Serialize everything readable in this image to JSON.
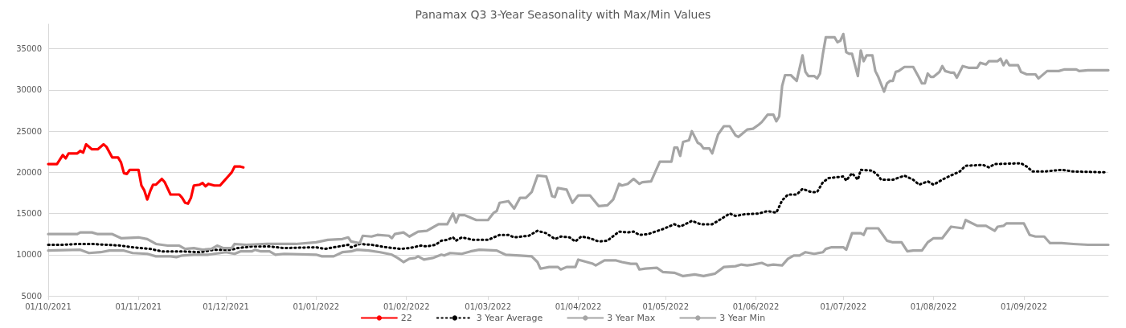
{
  "chart_data": {
    "type": "line",
    "title": "Panamax Q3 3-Year Seasonality with Max/Min Values",
    "xlim": [
      "2021-10-01",
      "2022-09-30"
    ],
    "xticks": [
      {
        "value": "2021-10-01",
        "label": "01/10/2021"
      },
      {
        "value": "2021-11-01",
        "label": "01/11/2021"
      },
      {
        "value": "2021-12-01",
        "label": "01/12/2021"
      },
      {
        "value": "2022-01-01",
        "label": "01/01/2022"
      },
      {
        "value": "2022-02-01",
        "label": "01/02/2022"
      },
      {
        "value": "2022-03-01",
        "label": "01/03/2022"
      },
      {
        "value": "2022-04-01",
        "label": "01/04/2022"
      },
      {
        "value": "2022-05-01",
        "label": "01/05/2022"
      },
      {
        "value": "2022-06-01",
        "label": "01/06/2022"
      },
      {
        "value": "2022-07-01",
        "label": "01/07/2022"
      },
      {
        "value": "2022-08-01",
        "label": "01/08/2022"
      },
      {
        "value": "2022-09-01",
        "label": "01/09/2022"
      }
    ],
    "ylim": [
      5000,
      38000
    ],
    "yticks": [
      5000,
      10000,
      15000,
      20000,
      25000,
      30000,
      35000
    ],
    "grid": "y",
    "legend": "bottom",
    "marker": "none",
    "series": [
      {
        "name": "22",
        "color": "#ff0000",
        "line_style": "solid",
        "x": [
          "2021-10-01",
          "2021-10-04",
          "2021-10-06",
          "2021-10-07",
          "2021-10-08",
          "2021-10-11",
          "2021-10-12",
          "2021-10-13",
          "2021-10-14",
          "2021-10-16",
          "2021-10-18",
          "2021-10-20",
          "2021-10-21",
          "2021-10-23",
          "2021-10-25",
          "2021-10-26",
          "2021-10-27",
          "2021-10-28",
          "2021-10-29",
          "2021-11-01",
          "2021-11-02",
          "2021-11-03",
          "2021-11-04",
          "2021-11-05",
          "2021-11-06",
          "2021-11-07",
          "2021-11-09",
          "2021-11-10",
          "2021-11-12",
          "2021-11-15",
          "2021-11-16",
          "2021-11-17",
          "2021-11-18",
          "2021-11-19",
          "2021-11-20",
          "2021-11-22",
          "2021-11-23",
          "2021-11-24",
          "2021-11-25",
          "2021-11-27",
          "2021-11-29",
          "2021-11-30",
          "2021-12-02",
          "2021-12-03",
          "2021-12-04",
          "2021-12-06",
          "2021-12-07"
        ],
        "values": [
          21000,
          21000,
          22100,
          21700,
          22300,
          22300,
          22600,
          22400,
          23400,
          22800,
          22800,
          23400,
          23100,
          21800,
          21800,
          21200,
          19900,
          19800,
          20300,
          20300,
          18400,
          17800,
          16700,
          17700,
          18500,
          18500,
          19200,
          18800,
          17300,
          17300,
          16900,
          16300,
          16200,
          16900,
          18400,
          18500,
          18700,
          18300,
          18600,
          18400,
          18400,
          18800,
          19600,
          20000,
          20700,
          20700,
          20600
        ]
      },
      {
        "name": "3 Year Average",
        "color": "#000000",
        "line_style": "dotted",
        "x": [
          "2021-10-01",
          "2021-10-06",
          "2021-10-11",
          "2021-10-16",
          "2021-10-21",
          "2021-10-26",
          "2021-10-30",
          "2021-11-05",
          "2021-11-09",
          "2021-11-16",
          "2021-11-22",
          "2021-11-27",
          "2021-12-03",
          "2021-12-05",
          "2021-12-10",
          "2021-12-16",
          "2021-12-21",
          "2022-01-01",
          "2022-01-04",
          "2022-01-12",
          "2022-01-13",
          "2022-01-16",
          "2022-01-20",
          "2022-01-25",
          "2022-01-30",
          "2022-02-02",
          "2022-02-06",
          "2022-02-08",
          "2022-02-11",
          "2022-02-13",
          "2022-02-15",
          "2022-02-17",
          "2022-02-18",
          "2022-02-20",
          "2022-02-24",
          "2022-03-01",
          "2022-03-05",
          "2022-03-08",
          "2022-03-10",
          "2022-03-15",
          "2022-03-18",
          "2022-03-21",
          "2022-03-24",
          "2022-03-26",
          "2022-03-29",
          "2022-03-31",
          "2022-04-02",
          "2022-04-05",
          "2022-04-08",
          "2022-04-11",
          "2022-04-15",
          "2022-04-18",
          "2022-04-20",
          "2022-04-22",
          "2022-04-25",
          "2022-04-30",
          "2022-05-04",
          "2022-05-06",
          "2022-05-10",
          "2022-05-13",
          "2022-05-17",
          "2022-05-19",
          "2022-05-23",
          "2022-05-25",
          "2022-05-28",
          "2022-06-02",
          "2022-06-05",
          "2022-06-08",
          "2022-06-10",
          "2022-06-12",
          "2022-06-15",
          "2022-06-17",
          "2022-06-20",
          "2022-06-22",
          "2022-06-24",
          "2022-06-26",
          "2022-07-01",
          "2022-07-02",
          "2022-07-04",
          "2022-07-06",
          "2022-07-07",
          "2022-07-11",
          "2022-07-13",
          "2022-07-14",
          "2022-07-18",
          "2022-07-22",
          "2022-07-25",
          "2022-07-27",
          "2022-07-30",
          "2022-08-01",
          "2022-08-05",
          "2022-08-10",
          "2022-08-12",
          "2022-08-18",
          "2022-08-20",
          "2022-08-22",
          "2022-08-31",
          "2022-09-02",
          "2022-09-04",
          "2022-09-08",
          "2022-09-14",
          "2022-09-18",
          "2022-09-29"
        ],
        "values": [
          11200,
          11200,
          11300,
          11300,
          11200,
          11100,
          10900,
          10700,
          10400,
          10400,
          10300,
          10600,
          10600,
          10800,
          11000,
          11000,
          10800,
          10900,
          10700,
          11200,
          10900,
          11300,
          11200,
          10900,
          10700,
          10800,
          11100,
          11000,
          11200,
          11700,
          11800,
          12100,
          11700,
          12100,
          11800,
          11800,
          12400,
          12400,
          12100,
          12300,
          12900,
          12600,
          11900,
          12200,
          12100,
          11600,
          12200,
          12000,
          11600,
          11700,
          12800,
          12700,
          12800,
          12400,
          12500,
          13100,
          13700,
          13400,
          14100,
          13700,
          13700,
          14100,
          15000,
          14700,
          14900,
          15000,
          15300,
          15100,
          16600,
          17300,
          17300,
          18000,
          17600,
          17600,
          18800,
          19300,
          19500,
          19000,
          19900,
          19100,
          20300,
          20200,
          19600,
          19100,
          19100,
          19600,
          19100,
          18500,
          18900,
          18500,
          19300,
          20100,
          20800,
          20900,
          20600,
          21000,
          21100,
          20700,
          20100,
          20100,
          20300,
          20100,
          20000
        ]
      },
      {
        "name": "3 Year Max",
        "color": "#a5a5a5",
        "line_style": "solid",
        "x": [
          "2021-10-01",
          "2021-10-11",
          "2021-10-12",
          "2021-10-16",
          "2021-10-18",
          "2021-10-23",
          "2021-10-26",
          "2021-11-01",
          "2021-11-04",
          "2021-11-07",
          "2021-11-11",
          "2021-11-15",
          "2021-11-17",
          "2021-11-20",
          "2021-11-23",
          "2021-11-26",
          "2021-11-28",
          "2021-11-30",
          "2021-12-03",
          "2021-12-04",
          "2021-12-08",
          "2021-12-15",
          "2021-12-25",
          "2022-01-01",
          "2022-01-05",
          "2022-01-10",
          "2022-01-12",
          "2022-01-13",
          "2022-01-16",
          "2022-01-17",
          "2022-01-20",
          "2022-01-22",
          "2022-01-26",
          "2022-01-27",
          "2022-01-28",
          "2022-01-31",
          "2022-02-02",
          "2022-02-05",
          "2022-02-08",
          "2022-02-10",
          "2022-02-12",
          "2022-02-15",
          "2022-02-17",
          "2022-02-18",
          "2022-02-19",
          "2022-02-21",
          "2022-02-23",
          "2022-02-25",
          "2022-03-01",
          "2022-03-03",
          "2022-03-04",
          "2022-03-05",
          "2022-03-08",
          "2022-03-10",
          "2022-03-12",
          "2022-03-14",
          "2022-03-16",
          "2022-03-18",
          "2022-03-21",
          "2022-03-22",
          "2022-03-23",
          "2022-03-24",
          "2022-03-25",
          "2022-03-28",
          "2022-03-30",
          "2022-04-01",
          "2022-04-05",
          "2022-04-08",
          "2022-04-11",
          "2022-04-13",
          "2022-04-15",
          "2022-04-16",
          "2022-04-18",
          "2022-04-20",
          "2022-04-22",
          "2022-04-23",
          "2022-04-26",
          "2022-04-29",
          "2022-05-03",
          "2022-05-04",
          "2022-05-05",
          "2022-05-06",
          "2022-05-07",
          "2022-05-09",
          "2022-05-10",
          "2022-05-12",
          "2022-05-13",
          "2022-05-14",
          "2022-05-16",
          "2022-05-17",
          "2022-05-19",
          "2022-05-21",
          "2022-05-23",
          "2022-05-25",
          "2022-05-26",
          "2022-05-28",
          "2022-05-29",
          "2022-05-31",
          "2022-06-02",
          "2022-06-03",
          "2022-06-05",
          "2022-06-07",
          "2022-06-08",
          "2022-06-09",
          "2022-06-10",
          "2022-06-11",
          "2022-06-13",
          "2022-06-15",
          "2022-06-17",
          "2022-06-18",
          "2022-06-19",
          "2022-06-21",
          "2022-06-22",
          "2022-06-23",
          "2022-06-24",
          "2022-06-25",
          "2022-06-28",
          "2022-06-29",
          "2022-06-30",
          "2022-07-01",
          "2022-07-02",
          "2022-07-03",
          "2022-07-04",
          "2022-07-06",
          "2022-07-07",
          "2022-07-08",
          "2022-07-09",
          "2022-07-11",
          "2022-07-12",
          "2022-07-13",
          "2022-07-15",
          "2022-07-16",
          "2022-07-17",
          "2022-07-18",
          "2022-07-19",
          "2022-07-20",
          "2022-07-22",
          "2022-07-25",
          "2022-07-27",
          "2022-07-28",
          "2022-07-29",
          "2022-07-30",
          "2022-07-31",
          "2022-08-01",
          "2022-08-03",
          "2022-08-04",
          "2022-08-05",
          "2022-08-07",
          "2022-08-08",
          "2022-08-09",
          "2022-08-11",
          "2022-08-13",
          "2022-08-16",
          "2022-08-17",
          "2022-08-19",
          "2022-08-20",
          "2022-08-23",
          "2022-08-24",
          "2022-08-25",
          "2022-08-26",
          "2022-08-27",
          "2022-08-30",
          "2022-08-31",
          "2022-09-02",
          "2022-09-05",
          "2022-09-06",
          "2022-09-09",
          "2022-09-13",
          "2022-09-15",
          "2022-09-19",
          "2022-09-20",
          "2022-09-23",
          "2022-09-30"
        ],
        "values": [
          12500,
          12500,
          12700,
          12700,
          12500,
          12500,
          12000,
          12100,
          11900,
          11300,
          11100,
          11100,
          10700,
          10800,
          10600,
          10700,
          11100,
          10800,
          10800,
          11300,
          11200,
          11300,
          11300,
          11500,
          11800,
          11900,
          12100,
          11600,
          11400,
          12300,
          12200,
          12400,
          12300,
          12000,
          12500,
          12700,
          12200,
          12800,
          12900,
          13300,
          13700,
          13700,
          15000,
          13900,
          14800,
          14800,
          14500,
          14200,
          14200,
          15100,
          15300,
          16300,
          16500,
          15600,
          16900,
          16900,
          17600,
          19600,
          19500,
          18400,
          17100,
          17000,
          18100,
          17900,
          16300,
          17200,
          17200,
          15900,
          16000,
          16700,
          18600,
          18400,
          18600,
          19200,
          18600,
          18800,
          18900,
          21300,
          21300,
          23000,
          23000,
          22000,
          23700,
          23900,
          25000,
          23600,
          23400,
          22900,
          22900,
          22300,
          24600,
          25600,
          25600,
          24500,
          24300,
          24900,
          25200,
          25300,
          25800,
          26100,
          27000,
          27000,
          26200,
          26800,
          30500,
          31800,
          31800,
          31100,
          34200,
          32200,
          31700,
          31700,
          31400,
          32000,
          34400,
          36400,
          36400,
          35800,
          36000,
          36800,
          34600,
          34400,
          34400,
          31700,
          34800,
          33500,
          34200,
          34200,
          32300,
          31600,
          29800,
          30800,
          31100,
          31100,
          32200,
          32300,
          32800,
          32800,
          31500,
          30800,
          30800,
          32000,
          31600,
          31600,
          32200,
          32900,
          32300,
          32100,
          32100,
          31500,
          32900,
          32700,
          32700,
          33300,
          33100,
          33500,
          33500,
          33800,
          33000,
          33600,
          33000,
          33000,
          32200,
          31900,
          31900,
          31400,
          32300,
          32300,
          32500,
          32500,
          32300,
          32400,
          32400
        ]
      },
      {
        "name": "3 Year Min",
        "color": "#a5a5a5",
        "line_style": "solid",
        "x": [
          "2021-10-01",
          "2021-10-12",
          "2021-10-15",
          "2021-10-19",
          "2021-10-22",
          "2021-10-27",
          "2021-10-30",
          "2021-11-04",
          "2021-11-07",
          "2021-11-12",
          "2021-11-14",
          "2021-11-16",
          "2021-11-20",
          "2021-11-25",
          "2021-12-01",
          "2021-12-04",
          "2021-12-06",
          "2021-12-10",
          "2021-12-11",
          "2021-12-13",
          "2021-12-16",
          "2021-12-18",
          "2021-12-21",
          "2022-01-01",
          "2022-01-03",
          "2022-01-07",
          "2022-01-10",
          "2022-01-13",
          "2022-01-15",
          "2022-01-19",
          "2022-01-23",
          "2022-01-27",
          "2022-01-29",
          "2022-01-31",
          "2022-02-02",
          "2022-02-04",
          "2022-02-05",
          "2022-02-07",
          "2022-02-10",
          "2022-02-13",
          "2022-02-14",
          "2022-02-16",
          "2022-02-20",
          "2022-02-23",
          "2022-02-26",
          "2022-03-04",
          "2022-03-07",
          "2022-03-12",
          "2022-03-16",
          "2022-03-18",
          "2022-03-19",
          "2022-03-22",
          "2022-03-25",
          "2022-03-26",
          "2022-03-28",
          "2022-03-31",
          "2022-04-01",
          "2022-04-03",
          "2022-04-06",
          "2022-04-07",
          "2022-04-10",
          "2022-04-14",
          "2022-04-16",
          "2022-04-19",
          "2022-04-21",
          "2022-04-22",
          "2022-04-24",
          "2022-04-28",
          "2022-04-30",
          "2022-05-04",
          "2022-05-07",
          "2022-05-11",
          "2022-05-14",
          "2022-05-18",
          "2022-05-21",
          "2022-05-25",
          "2022-05-27",
          "2022-05-29",
          "2022-05-31",
          "2022-06-03",
          "2022-06-05",
          "2022-06-07",
          "2022-06-10",
          "2022-06-12",
          "2022-06-14",
          "2022-06-16",
          "2022-06-18",
          "2022-06-21",
          "2022-06-24",
          "2022-06-25",
          "2022-06-27",
          "2022-07-01",
          "2022-07-02",
          "2022-07-04",
          "2022-07-07",
          "2022-07-08",
          "2022-07-09",
          "2022-07-13",
          "2022-07-16",
          "2022-07-18",
          "2022-07-21",
          "2022-07-23",
          "2022-07-25",
          "2022-07-28",
          "2022-07-30",
          "2022-08-01",
          "2022-08-04",
          "2022-08-07",
          "2022-08-11",
          "2022-08-12",
          "2022-08-16",
          "2022-08-19",
          "2022-08-22",
          "2022-08-23",
          "2022-08-25",
          "2022-08-26",
          "2022-09-01",
          "2022-09-03",
          "2022-09-05",
          "2022-09-08",
          "2022-09-10",
          "2022-09-14",
          "2022-09-18",
          "2022-09-23",
          "2022-09-30"
        ],
        "values": [
          10500,
          10600,
          10200,
          10300,
          10500,
          10500,
          10200,
          10100,
          9800,
          9800,
          9700,
          9900,
          10000,
          10000,
          10300,
          10100,
          10400,
          10400,
          10600,
          10400,
          10400,
          10000,
          10100,
          10000,
          9800,
          9800,
          10300,
          10400,
          10600,
          10500,
          10300,
          10000,
          9600,
          9100,
          9500,
          9600,
          9800,
          9400,
          9600,
          10000,
          9900,
          10200,
          10100,
          10400,
          10600,
          10500,
          10000,
          9900,
          9800,
          9100,
          8300,
          8500,
          8500,
          8200,
          8500,
          8500,
          9400,
          9200,
          8900,
          8700,
          9300,
          9300,
          9100,
          8900,
          8900,
          8200,
          8300,
          8400,
          7900,
          7800,
          7400,
          7600,
          7400,
          7700,
          8500,
          8600,
          8800,
          8700,
          8800,
          9000,
          8700,
          8800,
          8700,
          9500,
          9900,
          9900,
          10300,
          10100,
          10300,
          10700,
          10900,
          10900,
          10600,
          12600,
          12600,
          12400,
          13200,
          13200,
          11700,
          11500,
          11500,
          10400,
          10500,
          10500,
          11500,
          12000,
          12000,
          13400,
          13200,
          14200,
          13500,
          13500,
          12900,
          13400,
          13500,
          13800,
          13800,
          12400,
          12200,
          12200,
          11400,
          11400,
          11300,
          11200,
          11200
        ]
      }
    ]
  }
}
